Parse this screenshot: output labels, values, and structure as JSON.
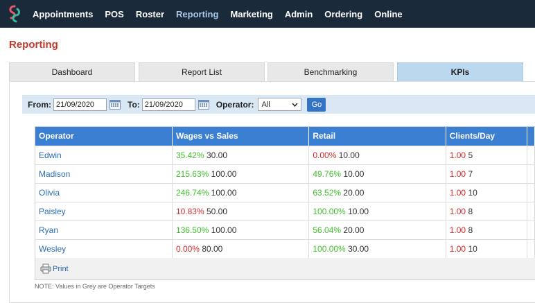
{
  "nav": {
    "items": [
      {
        "label": "Appointments",
        "active": false
      },
      {
        "label": "POS",
        "active": false
      },
      {
        "label": "Roster",
        "active": false
      },
      {
        "label": "Reporting",
        "active": true
      },
      {
        "label": "Marketing",
        "active": false
      },
      {
        "label": "Admin",
        "active": false
      },
      {
        "label": "Ordering",
        "active": false
      },
      {
        "label": "Online",
        "active": false
      }
    ]
  },
  "page": {
    "title": "Reporting"
  },
  "tabs": [
    {
      "label": "Dashboard",
      "active": false
    },
    {
      "label": "Report List",
      "active": false
    },
    {
      "label": "Benchmarking",
      "active": false
    },
    {
      "label": "KPIs",
      "active": true
    }
  ],
  "filters": {
    "from_label": "From:",
    "from_value": "21/09/2020",
    "to_label": "To:",
    "to_value": "21/09/2020",
    "operator_label": "Operator:",
    "operator_value": "All",
    "go_label": "Go"
  },
  "table": {
    "headers": [
      "Operator",
      "Wages vs Sales",
      "Retail",
      "Clients/Day",
      ""
    ],
    "rows": [
      {
        "operator": "Edwin",
        "wages_pct": "35.42%",
        "wages_status": "good",
        "wages_target": "30.00",
        "retail_pct": "0.00%",
        "retail_status": "bad",
        "retail_target": "10.00",
        "clients_val": "1.00",
        "clients_status": "bad",
        "clients_target": "5"
      },
      {
        "operator": "Madison",
        "wages_pct": "215.63%",
        "wages_status": "good",
        "wages_target": "100.00",
        "retail_pct": "49.76%",
        "retail_status": "good",
        "retail_target": "10.00",
        "clients_val": "1.00",
        "clients_status": "bad",
        "clients_target": "7"
      },
      {
        "operator": "Olivia",
        "wages_pct": "246.74%",
        "wages_status": "good",
        "wages_target": "100.00",
        "retail_pct": "63.52%",
        "retail_status": "good",
        "retail_target": "20.00",
        "clients_val": "1.00",
        "clients_status": "bad",
        "clients_target": "10"
      },
      {
        "operator": "Paisley",
        "wages_pct": "10.83%",
        "wages_status": "bad",
        "wages_target": "50.00",
        "retail_pct": "100.00%",
        "retail_status": "good",
        "retail_target": "10.00",
        "clients_val": "1.00",
        "clients_status": "bad",
        "clients_target": "8"
      },
      {
        "operator": "Ryan",
        "wages_pct": "136.50%",
        "wages_status": "good",
        "wages_target": "100.00",
        "retail_pct": "56.04%",
        "retail_status": "good",
        "retail_target": "20.00",
        "clients_val": "1.00",
        "clients_status": "bad",
        "clients_target": "8"
      },
      {
        "operator": "Wesley",
        "wages_pct": "0.00%",
        "wages_status": "bad",
        "wages_target": "80.00",
        "retail_pct": "100.00%",
        "retail_status": "good",
        "retail_target": "30.00",
        "clients_val": "1.00",
        "clients_status": "bad",
        "clients_target": "10"
      }
    ]
  },
  "print": {
    "label": "Print",
    "icon": "printer-icon"
  },
  "note": "NOTE: Values in Grey are Operator Targets",
  "colors": {
    "nav_bg": "#1b2a3a",
    "accent": "#3a7fd1",
    "title": "#c0392b",
    "good": "#3fbf2b",
    "bad": "#d42a2a"
  }
}
